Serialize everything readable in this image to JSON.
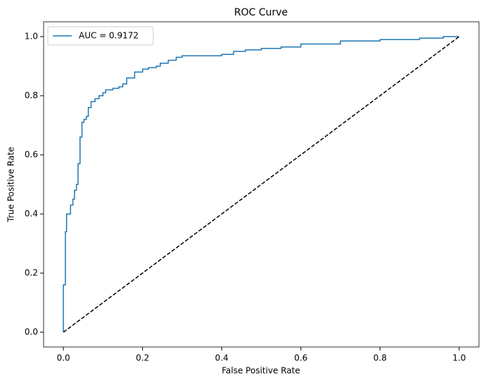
{
  "chart_data": {
    "type": "line",
    "title": "ROC Curve",
    "x_label": "False Positive Rate",
    "y_label": "True Positive Rate",
    "xlim": [
      -0.05,
      1.05
    ],
    "ylim": [
      -0.05,
      1.05
    ],
    "xticks": [
      {
        "value": 0,
        "label": "0.0"
      },
      0.2,
      0.4,
      0.6,
      0.8,
      {
        "value": 1,
        "label": "1.0"
      }
    ],
    "yticks": [
      {
        "value": 0,
        "label": "0.0"
      },
      0.2,
      0.4,
      0.6,
      0.8,
      {
        "value": 1,
        "label": "1.0"
      }
    ],
    "grid": false,
    "legend": "upper left",
    "series": [
      {
        "name": "AUC = 0.9172",
        "color": "#1f77b4",
        "x": [
          0,
          0,
          0.005,
          0.005,
          0.008,
          0.008,
          0.018,
          0.018,
          0.024,
          0.024,
          0.028,
          0.028,
          0.033,
          0.033,
          0.037,
          0.037,
          0.042,
          0.042,
          0.047,
          0.047,
          0.052,
          0.052,
          0.058,
          0.058,
          0.063,
          0.063,
          0.07,
          0.07,
          0.08,
          0.08,
          0.09,
          0.09,
          0.1,
          0.1,
          0.107,
          0.107,
          0.125,
          0.125,
          0.14,
          0.14,
          0.15,
          0.15,
          0.16,
          0.16,
          0.18,
          0.18,
          0.2,
          0.2,
          0.215,
          0.215,
          0.235,
          0.235,
          0.245,
          0.245,
          0.265,
          0.265,
          0.285,
          0.285,
          0.3,
          0.3,
          0.4,
          0.4,
          0.43,
          0.43,
          0.46,
          0.46,
          0.5,
          0.5,
          0.55,
          0.55,
          0.6,
          0.6,
          0.7,
          0.7,
          0.8,
          0.8,
          0.9,
          0.9,
          0.96,
          0.96,
          1
        ],
        "values": [
          0,
          0.16,
          0.16,
          0.34,
          0.34,
          0.4,
          0.4,
          0.43,
          0.43,
          0.45,
          0.45,
          0.48,
          0.48,
          0.5,
          0.5,
          0.57,
          0.57,
          0.66,
          0.66,
          0.71,
          0.71,
          0.72,
          0.72,
          0.73,
          0.73,
          0.76,
          0.76,
          0.78,
          0.78,
          0.79,
          0.79,
          0.8,
          0.8,
          0.81,
          0.81,
          0.82,
          0.82,
          0.825,
          0.825,
          0.83,
          0.83,
          0.84,
          0.84,
          0.86,
          0.86,
          0.88,
          0.88,
          0.89,
          0.89,
          0.895,
          0.895,
          0.9,
          0.9,
          0.91,
          0.91,
          0.92,
          0.92,
          0.93,
          0.93,
          0.935,
          0.935,
          0.94,
          0.94,
          0.95,
          0.95,
          0.955,
          0.955,
          0.96,
          0.96,
          0.965,
          0.965,
          0.975,
          0.975,
          0.985,
          0.985,
          0.99,
          0.99,
          0.995,
          0.995,
          1,
          1
        ]
      },
      {
        "color": "#000000",
        "dashed": true,
        "x": [
          0,
          1
        ],
        "values": [
          0,
          1
        ]
      }
    ]
  }
}
